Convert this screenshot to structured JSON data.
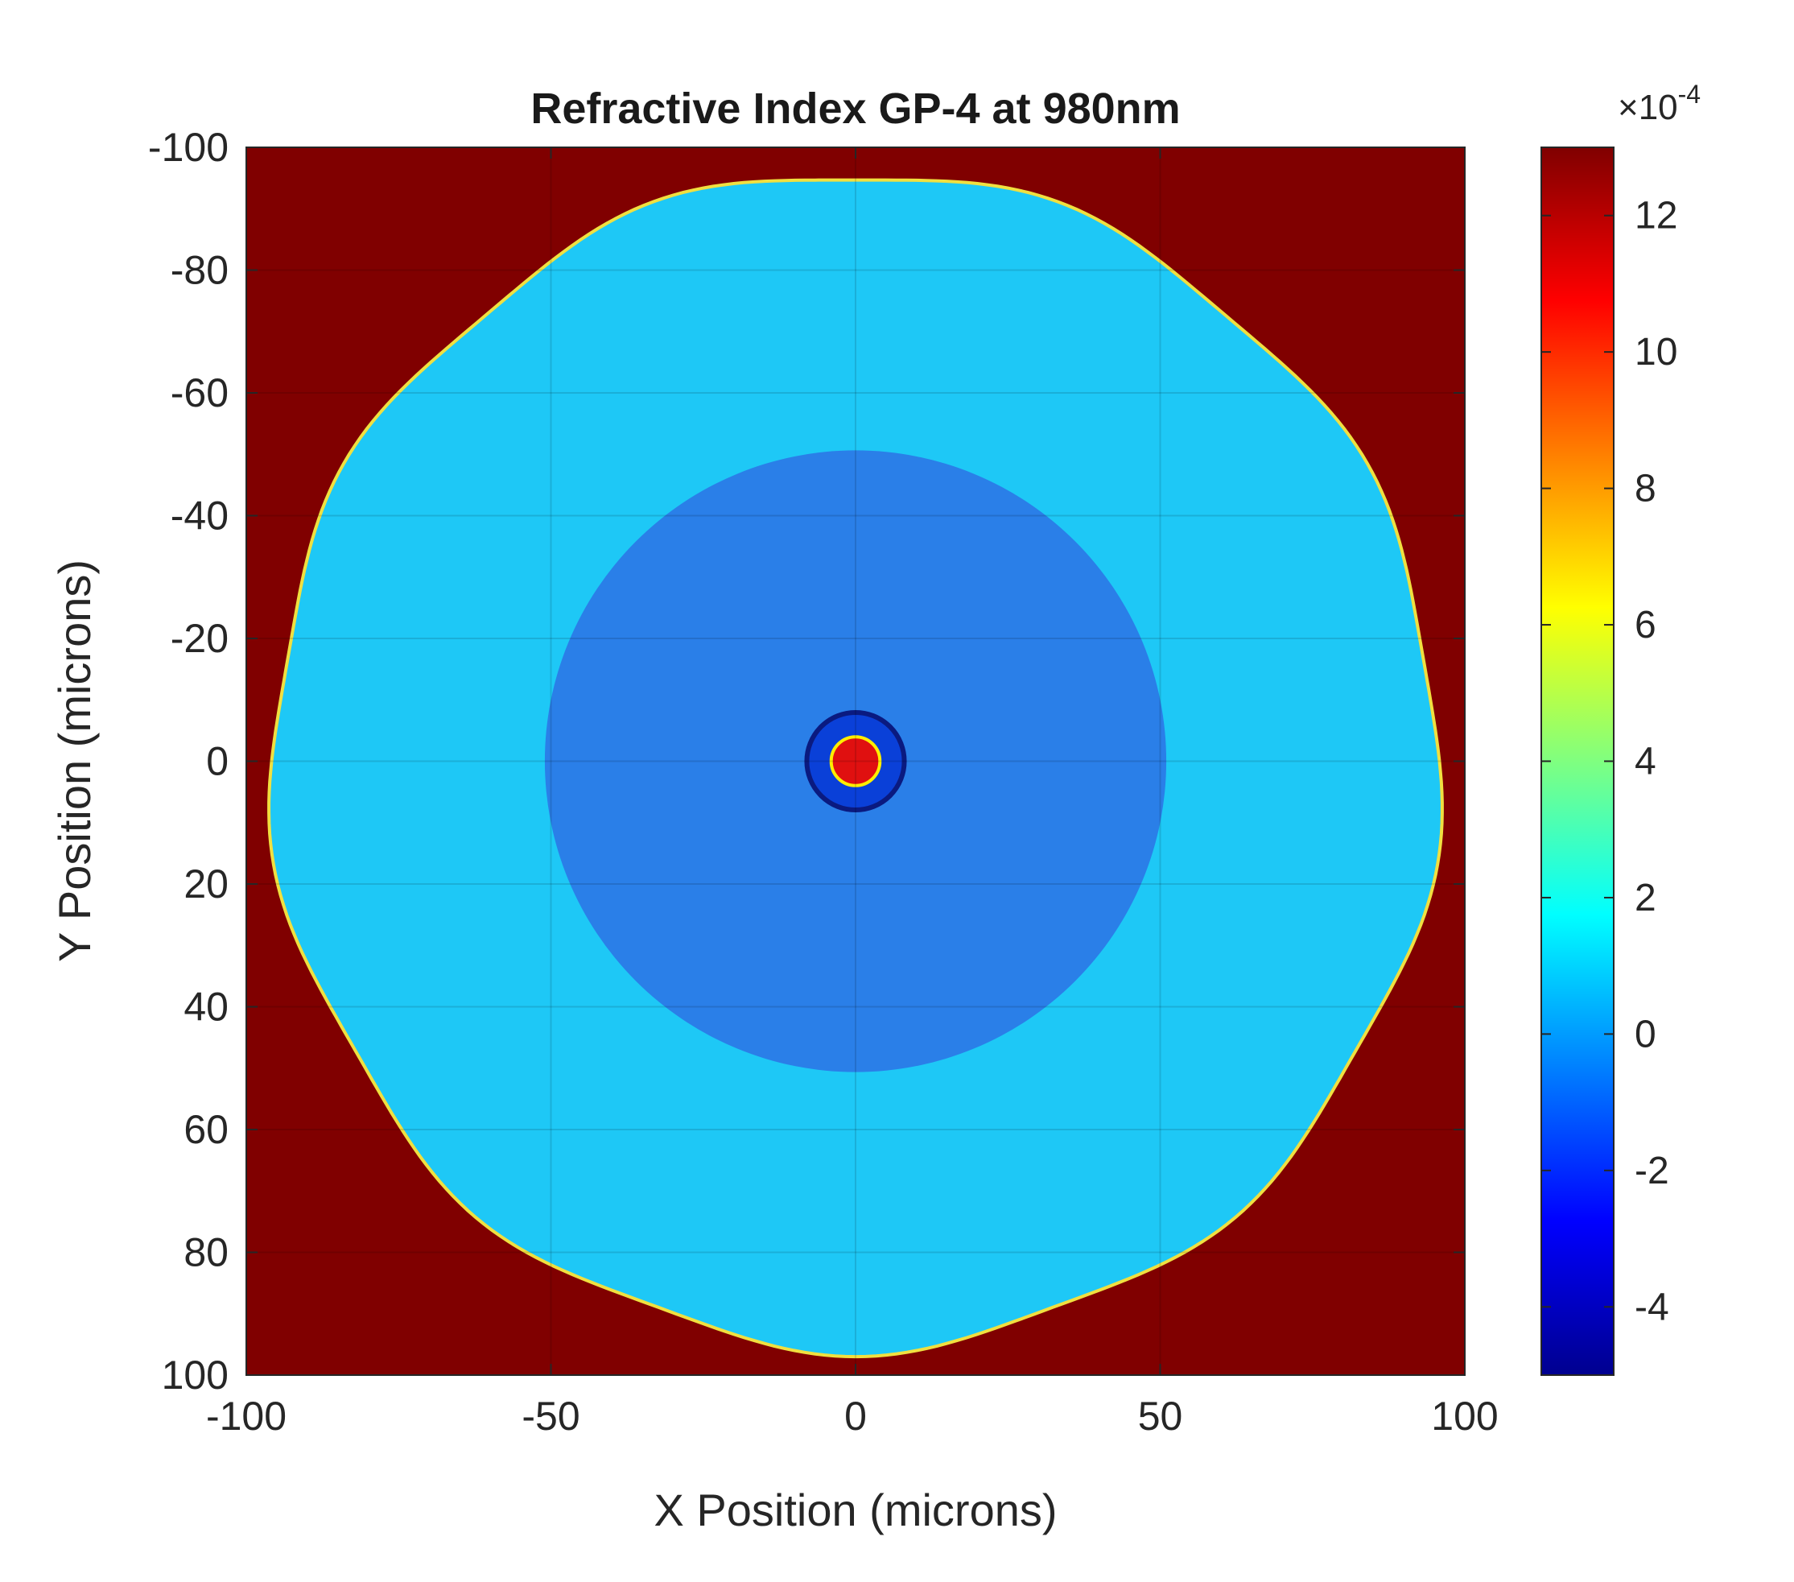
{
  "chart_data": {
    "type": "heatmap",
    "title": "Refractive Index GP-4 at 980nm",
    "xlabel": "X Position (microns)",
    "ylabel": "Y Position (microns)",
    "xlim": [
      -100,
      100
    ],
    "ylim": [
      -100,
      100
    ],
    "y_direction": "reversed",
    "x_ticks": [
      -100,
      -50,
      0,
      50,
      100
    ],
    "y_ticks": [
      -100,
      -80,
      -60,
      -40,
      -20,
      0,
      20,
      40,
      60,
      80,
      100
    ],
    "x_tick_labels": [
      "-100",
      "-50",
      "0",
      "50",
      "100"
    ],
    "y_tick_labels": [
      "-100",
      "-80",
      "-60",
      "-40",
      "-20",
      "0",
      "20",
      "40",
      "60",
      "80",
      "100"
    ],
    "grid": true,
    "colormap": "jet",
    "colorbar": {
      "clim": [
        -5,
        13
      ],
      "ticks": [
        -4,
        -2,
        0,
        2,
        4,
        6,
        8,
        10,
        12
      ],
      "tick_labels": [
        "-4",
        "-2",
        "0",
        "2",
        "4",
        "6",
        "8",
        "10",
        "12"
      ],
      "multiplier": "×10",
      "exponent": "-4",
      "placement": "right"
    },
    "regions": [
      {
        "region": "background outside fiber",
        "value": 13
      },
      {
        "region": "cladding",
        "outer_radius_microns": 97,
        "value": 1.5
      },
      {
        "region": "depressed inner ring",
        "outer_radius_microns": 51,
        "value": -0.2
      },
      {
        "region": "core surround ring",
        "outer_radius_microns": 8,
        "value": -0.8
      },
      {
        "region": "core",
        "outer_radius_microns": 4,
        "value": 11
      }
    ]
  }
}
